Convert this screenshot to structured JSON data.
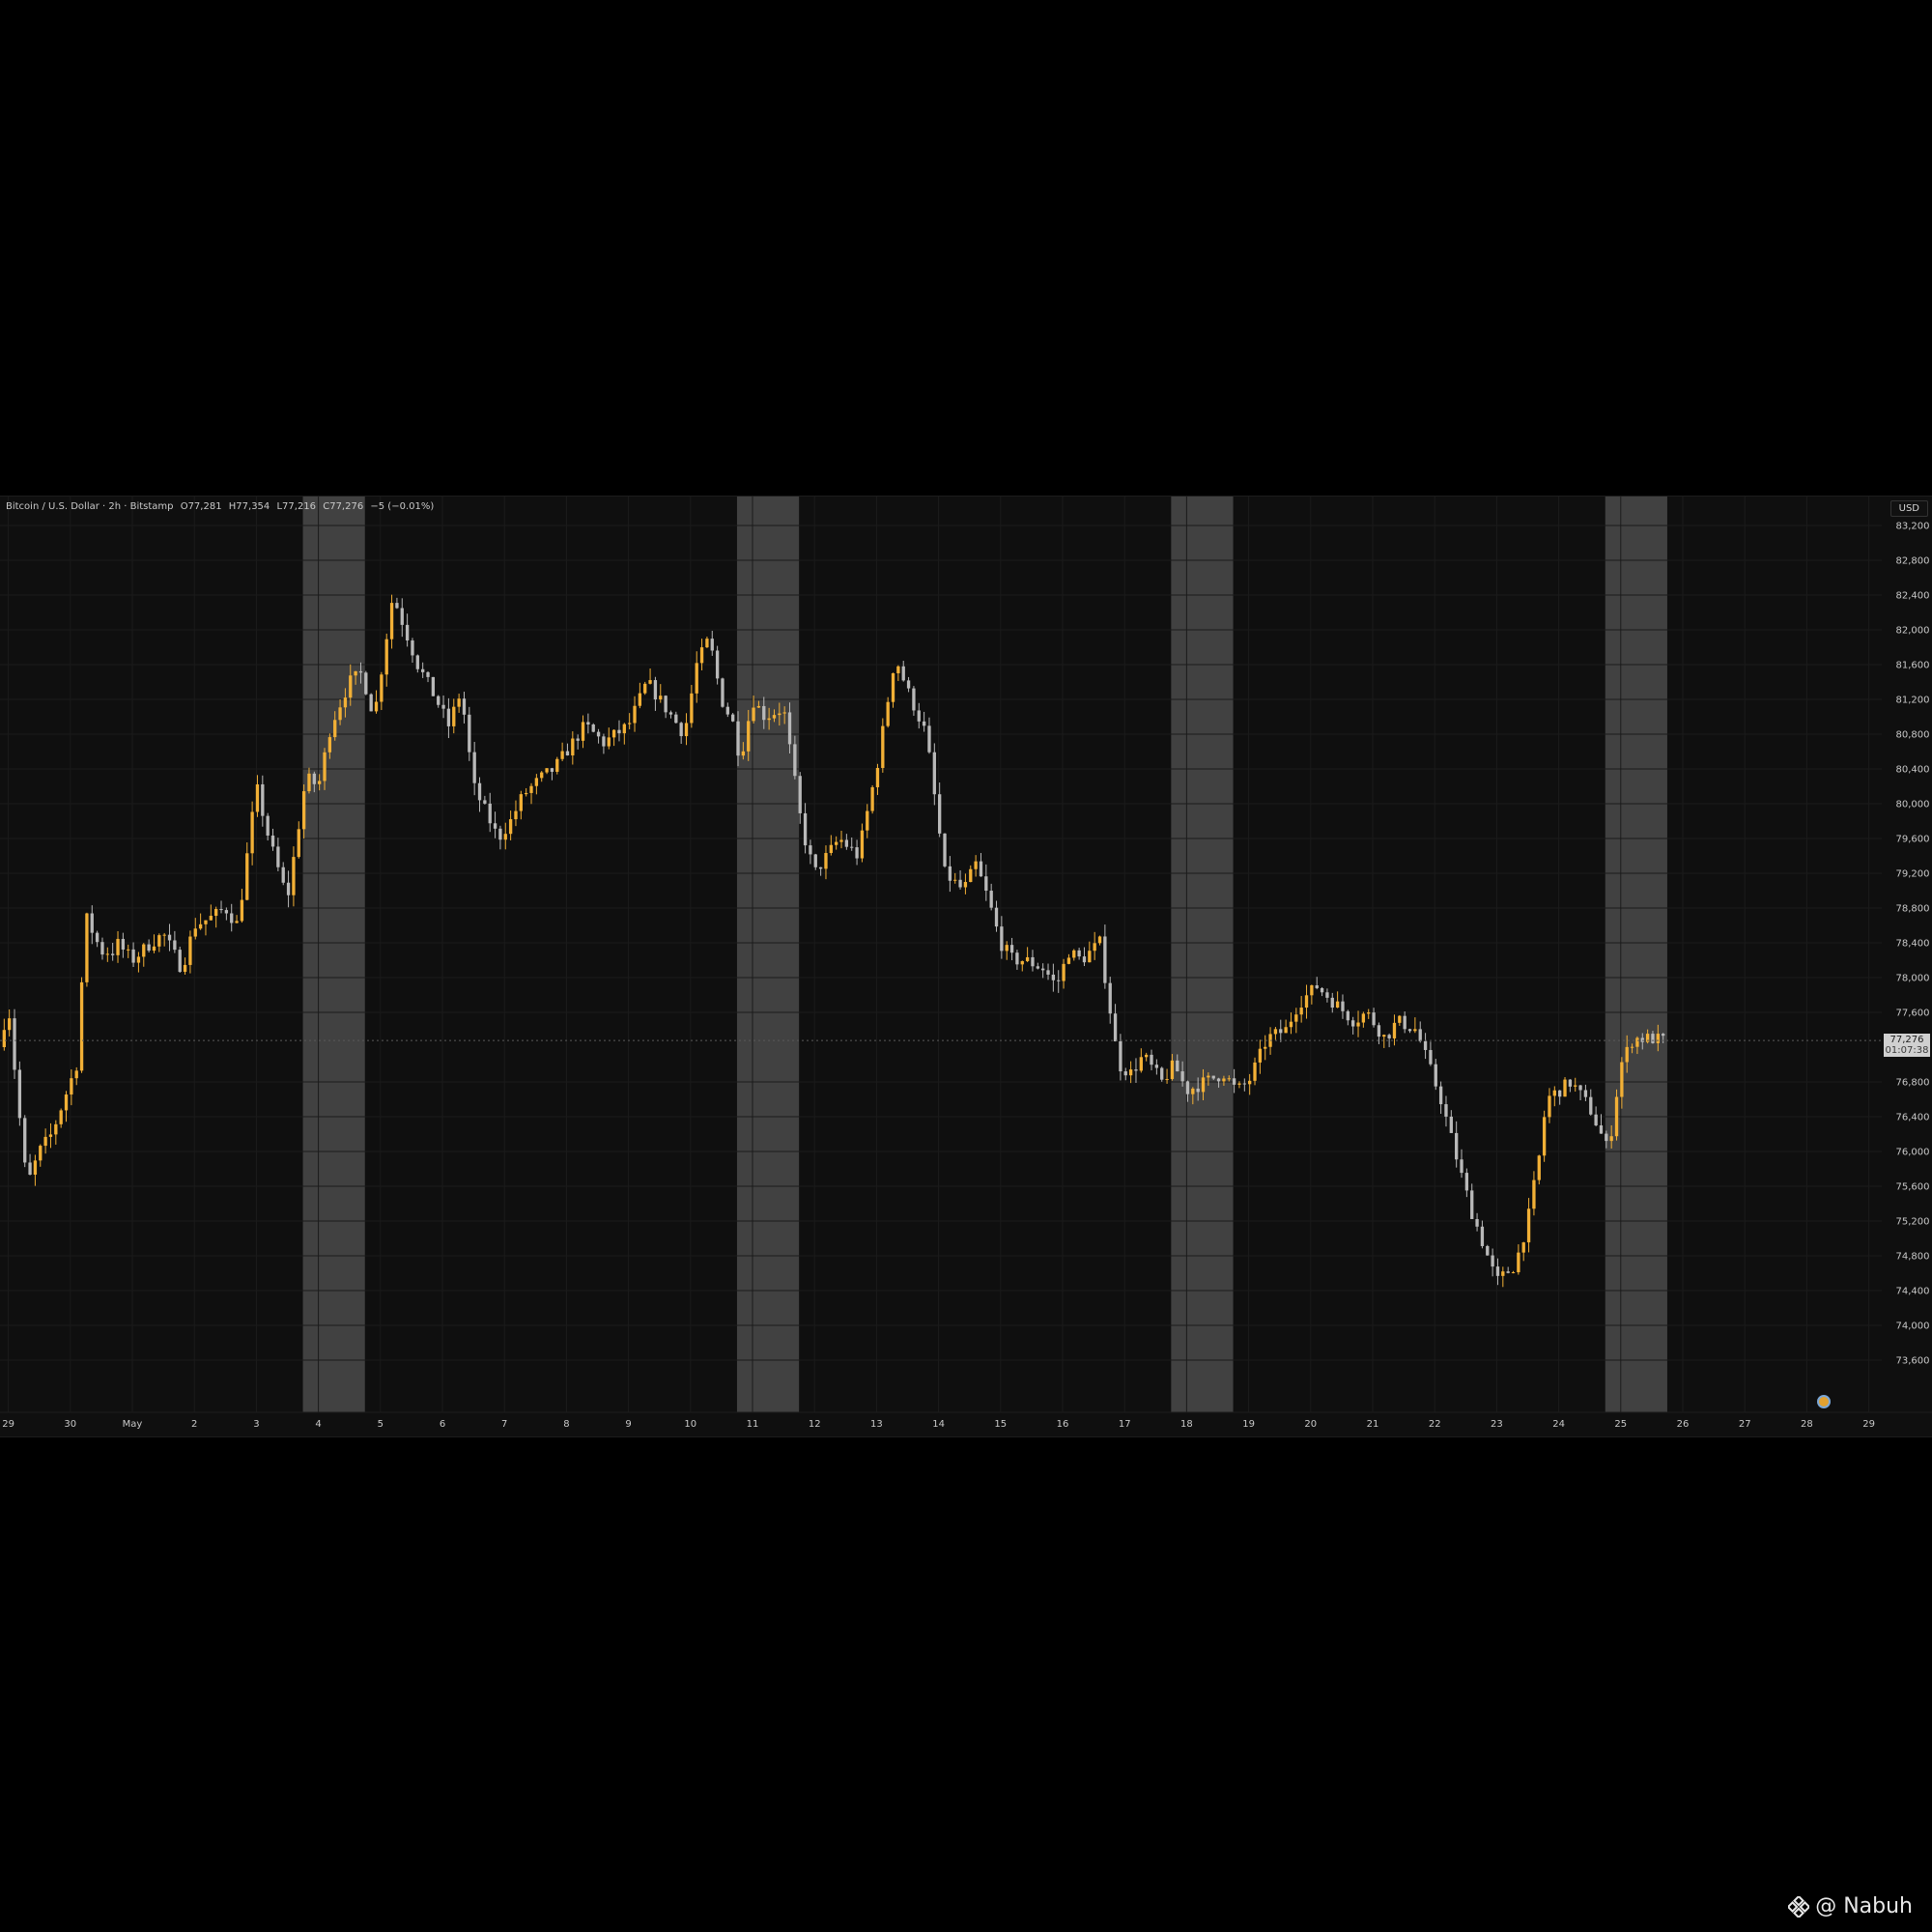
{
  "legend": {
    "symbol": "Bitcoin / U.S. Dollar · 2h · Bitstamp",
    "open": "O77,281",
    "high": "H77,354",
    "low": "L77,216",
    "close": "C77,276",
    "change": "−5 (−0.01%)"
  },
  "currency": "USD",
  "last_price": {
    "value": "77,276",
    "countdown": "01:07:38"
  },
  "watermark": "@ Nabuh",
  "colors": {
    "up": "#f2b036",
    "down": "#b9b9b9",
    "background": "#0f0f0f",
    "highlight": "#4a4a4a",
    "grid": "#1b1b1b",
    "text": "#c9c9c9"
  },
  "chart_data": {
    "type": "candlestick",
    "grid": true,
    "ylim": [
      73400,
      83200
    ],
    "y_ticks": [
      "83,200",
      "82,800",
      "82,400",
      "82,000",
      "81,600",
      "81,200",
      "80,800",
      "80,400",
      "80,000",
      "79,600",
      "79,200",
      "78,800",
      "78,400",
      "78,000",
      "77,600",
      "76,800",
      "76,400",
      "76,000",
      "75,600",
      "75,200",
      "74,800",
      "74,400",
      "74,000",
      "73,600"
    ],
    "x_ticks": [
      "29",
      "30",
      "May",
      "2",
      "3",
      "4",
      "5",
      "6",
      "7",
      "8",
      "9",
      "10",
      "11",
      "12",
      "13",
      "14",
      "15",
      "16",
      "17",
      "18",
      "19",
      "20",
      "21",
      "22",
      "23",
      "24",
      "25",
      "26",
      "27",
      "28",
      "29"
    ],
    "x_tick_days": [
      -2,
      -1,
      0,
      1,
      2,
      3,
      4,
      5,
      6,
      7,
      8,
      9,
      10,
      11,
      12,
      13,
      14,
      15,
      16,
      17,
      18,
      19,
      20,
      21,
      22,
      23,
      24,
      25,
      26,
      27,
      28
    ],
    "highlighted_days": [
      3,
      10,
      17,
      24
    ],
    "path_days": [
      -2.15,
      -2.0,
      -1.85,
      -1.7,
      -1.5,
      -1.3,
      -1.1,
      -0.9,
      -0.75,
      -0.5,
      -0.3,
      -0.25,
      0.0,
      0.3,
      0.5,
      0.8,
      1.0,
      1.3,
      1.5,
      1.7,
      2.0,
      2.2,
      2.5,
      2.8,
      3.0,
      3.2,
      3.5,
      3.7,
      3.9,
      4.2,
      4.6,
      4.9,
      5.1,
      5.3,
      5.5,
      5.9,
      6.1,
      6.3,
      6.6,
      6.8,
      7.0,
      7.3,
      7.6,
      7.8,
      8.0,
      8.3,
      8.7,
      8.9,
      9.1,
      9.3,
      9.5,
      9.7,
      9.8,
      10.0,
      10.2,
      10.5,
      10.8,
      11.0,
      11.4,
      11.7,
      12.0,
      12.3,
      12.5,
      12.8,
      13.1,
      13.4,
      13.6,
      13.8,
      14.0,
      14.2,
      14.4,
      14.7,
      14.9,
      15.1,
      15.3,
      15.6,
      15.9,
      16.1,
      16.3,
      16.6,
      16.8,
      17.0,
      17.3,
      17.6,
      17.8,
      18.0,
      18.3,
      18.6,
      18.8,
      19.1,
      19.4,
      19.7,
      19.9,
      20.2,
      20.4,
      20.7,
      20.9,
      21.1,
      21.4,
      21.6,
      21.9,
      22.0,
      22.3,
      22.5,
      22.7,
      22.8,
      23.0,
      23.2,
      23.5,
      23.8,
      24.0,
      24.2,
      24.5,
      24.7
    ],
    "path_closes": [
      77200,
      77700,
      76600,
      75600,
      76000,
      76200,
      76600,
      77000,
      78700,
      78300,
      78300,
      78400,
      78200,
      78400,
      78500,
      78100,
      78600,
      78700,
      78800,
      78600,
      80200,
      79600,
      78900,
      80300,
      80200,
      80900,
      81400,
      81500,
      81000,
      82400,
      81600,
      81200,
      80900,
      81300,
      80200,
      79600,
      79800,
      80100,
      80300,
      80400,
      80600,
      80900,
      80700,
      80800,
      80900,
      81400,
      81000,
      80800,
      81600,
      81900,
      81200,
      80900,
      80500,
      81200,
      81000,
      81100,
      79700,
      79200,
      79600,
      79400,
      80400,
      81700,
      81300,
      80800,
      79200,
      79000,
      79300,
      78900,
      78400,
      78200,
      78200,
      78100,
      77900,
      78300,
      78200,
      78400,
      77000,
      76900,
      77100,
      76800,
      77000,
      76700,
      76800,
      76900,
      76700,
      76800,
      77300,
      77400,
      77700,
      77900,
      77700,
      77500,
      77600,
      77300,
      77500,
      77400,
      77000,
      76600,
      75800,
      75300,
      74700,
      74500,
      74700,
      75200,
      76000,
      76600,
      76700,
      76800,
      76500,
      76000,
      77000,
      77300,
      77300,
      77276
    ]
  }
}
